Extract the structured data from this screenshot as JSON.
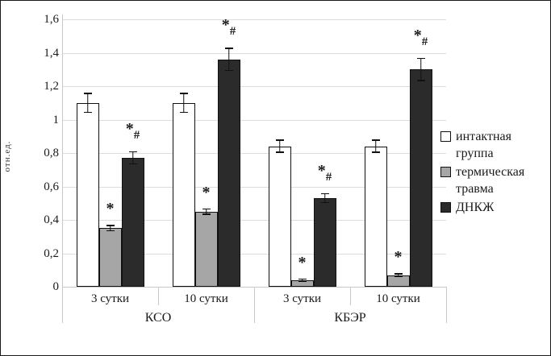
{
  "chart_data": {
    "type": "bar",
    "title": "",
    "ylabel": "отн.ед.",
    "ylim": [
      0,
      1.6
    ],
    "y_tick_step": 0.2,
    "y_tick_labels": [
      "0",
      "0,2",
      "0,4",
      "0,6",
      "0,8",
      "1",
      "1,2",
      "1,4",
      "1,6"
    ],
    "grid": true,
    "legend_position": "right",
    "categories": [
      "3 сутки",
      "10 сутки",
      "3 сутки",
      "10 сутки"
    ],
    "group_labels": [
      "КСО",
      "КБЭР"
    ],
    "series": [
      {
        "name": "интактная группа",
        "color": "#ffffff",
        "values": [
          1.1,
          1.1,
          0.84,
          0.84
        ],
        "errors": [
          0.06,
          0.06,
          0.04,
          0.04
        ],
        "annotations": [
          "",
          "",
          "",
          ""
        ]
      },
      {
        "name": "термическая травма",
        "color": "#a6a6a6",
        "values": [
          0.35,
          0.45,
          0.04,
          0.07
        ],
        "errors": [
          0.02,
          0.02,
          0.01,
          0.01
        ],
        "annotations": [
          "*",
          "*",
          "*",
          "*"
        ]
      },
      {
        "name": "ДНКЖ",
        "color": "#2b2b2b",
        "values": [
          0.77,
          1.36,
          0.53,
          1.3
        ],
        "errors": [
          0.04,
          0.07,
          0.03,
          0.07
        ],
        "annotations": [
          "*#",
          "*#",
          "*#",
          "*#"
        ]
      }
    ]
  }
}
